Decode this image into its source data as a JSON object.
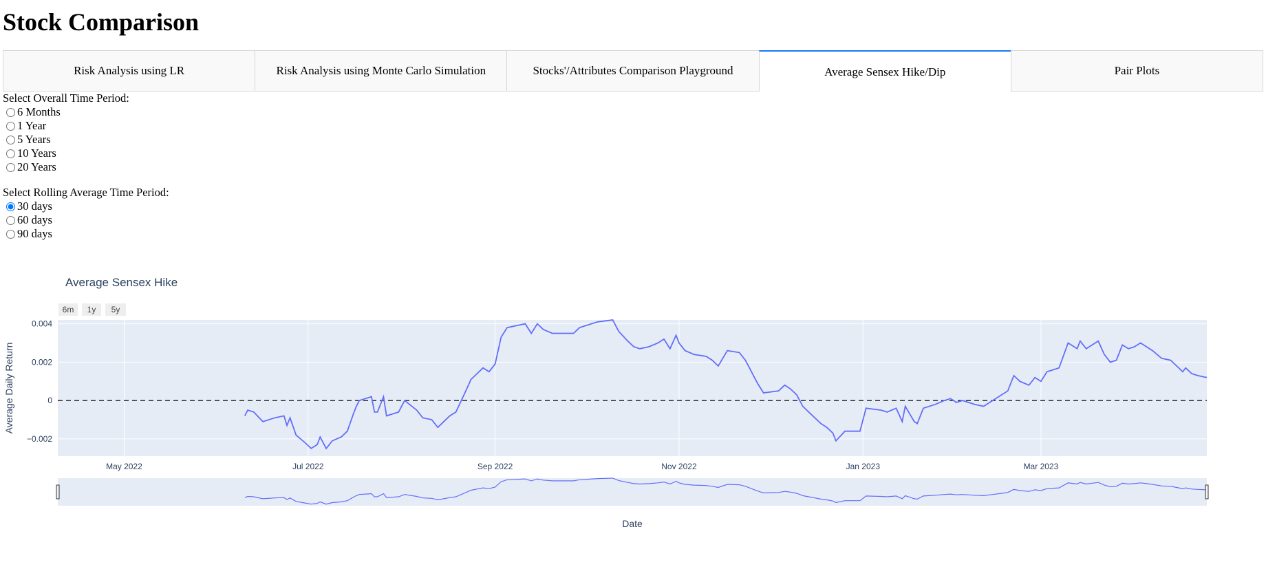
{
  "page": {
    "title": "Stock Comparison"
  },
  "tabs": [
    {
      "label": "Risk Analysis using LR",
      "selected": false
    },
    {
      "label": "Risk Analysis using Monte Carlo Simulation",
      "selected": false
    },
    {
      "label": "Stocks'/Attributes Comparison Playground",
      "selected": false
    },
    {
      "label": "Average Sensex Hike/Dip",
      "selected": true
    },
    {
      "label": "Pair Plots",
      "selected": false
    }
  ],
  "time_period": {
    "label": "Select Overall Time Period:",
    "options": [
      "6 Months",
      "1 Year",
      "5 Years",
      "10 Years",
      "20 Years"
    ],
    "selected": null
  },
  "rolling": {
    "label": "Select Rolling Average Time Period:",
    "options": [
      "30 days",
      "60 days",
      "90 days"
    ],
    "selected": "30 days"
  },
  "colors": {
    "line": "#636efa",
    "plot_bg": "#e5ecf6",
    "tab_accent": "#1975FA"
  },
  "range_selector": [
    "6m",
    "1y",
    "5y"
  ],
  "chart_data": {
    "type": "line",
    "title": "Average Sensex Hike",
    "xlabel": "Date",
    "ylabel": "Average Daily Return",
    "xlim": [
      "2022-04-09",
      "2023-04-25"
    ],
    "ylim": [
      -0.0029,
      0.0042
    ],
    "xticks": [
      {
        "date": "2022-05-01",
        "label": "May 2022"
      },
      {
        "date": "2022-07-01",
        "label": "Jul 2022"
      },
      {
        "date": "2022-09-01",
        "label": "Sep 2022"
      },
      {
        "date": "2022-11-01",
        "label": "Nov 2022"
      },
      {
        "date": "2023-01-01",
        "label": "Jan 2023"
      },
      {
        "date": "2023-03-01",
        "label": "Mar 2023"
      }
    ],
    "yticks": [
      {
        "value": 0.004,
        "label": "0.004"
      },
      {
        "value": 0.002,
        "label": "0.002"
      },
      {
        "value": 0,
        "label": "0"
      },
      {
        "value": -0.002,
        "label": "−0.002"
      }
    ],
    "reference_line": {
      "y": 0,
      "style": "dashed"
    },
    "grid": true,
    "rangeslider": true,
    "series": [
      {
        "values": [
          [
            "2022-06-10",
            -0.0008
          ],
          [
            "2022-06-11",
            -0.0005
          ],
          [
            "2022-06-13",
            -0.0006
          ],
          [
            "2022-06-16",
            -0.0011
          ],
          [
            "2022-06-20",
            -0.0009
          ],
          [
            "2022-06-23",
            -0.0008
          ],
          [
            "2022-06-24",
            -0.0013
          ],
          [
            "2022-06-25",
            -0.0009
          ],
          [
            "2022-06-27",
            -0.0018
          ],
          [
            "2022-06-30",
            -0.0022
          ],
          [
            "2022-07-02",
            -0.0025
          ],
          [
            "2022-07-04",
            -0.0023
          ],
          [
            "2022-07-05",
            -0.0019
          ],
          [
            "2022-07-07",
            -0.0025
          ],
          [
            "2022-07-09",
            -0.0021
          ],
          [
            "2022-07-12",
            -0.0019
          ],
          [
            "2022-07-14",
            -0.0016
          ],
          [
            "2022-07-16",
            -0.0007
          ],
          [
            "2022-07-17",
            -0.0003
          ],
          [
            "2022-07-18",
            0.0
          ],
          [
            "2022-07-20",
            0.0001
          ],
          [
            "2022-07-22",
            0.0002
          ],
          [
            "2022-07-23",
            -0.0006
          ],
          [
            "2022-07-24",
            -0.0006
          ],
          [
            "2022-07-26",
            0.0002
          ],
          [
            "2022-07-27",
            -0.0008
          ],
          [
            "2022-07-31",
            -0.0006
          ],
          [
            "2022-08-02",
            0.0
          ],
          [
            "2022-08-06",
            -0.0005
          ],
          [
            "2022-08-08",
            -0.0009
          ],
          [
            "2022-08-11",
            -0.001
          ],
          [
            "2022-08-13",
            -0.0014
          ],
          [
            "2022-08-15",
            -0.0011
          ],
          [
            "2022-08-17",
            -0.0008
          ],
          [
            "2022-08-19",
            -0.0006
          ],
          [
            "2022-08-22",
            0.0004
          ],
          [
            "2022-08-24",
            0.0011
          ],
          [
            "2022-08-26",
            0.0014
          ],
          [
            "2022-08-28",
            0.0017
          ],
          [
            "2022-08-30",
            0.0015
          ],
          [
            "2022-09-01",
            0.0019
          ],
          [
            "2022-09-03",
            0.0033
          ],
          [
            "2022-09-05",
            0.0038
          ],
          [
            "2022-09-08",
            0.0039
          ],
          [
            "2022-09-11",
            0.004
          ],
          [
            "2022-09-13",
            0.0035
          ],
          [
            "2022-09-15",
            0.004
          ],
          [
            "2022-09-17",
            0.0037
          ],
          [
            "2022-09-20",
            0.0035
          ],
          [
            "2022-09-27",
            0.0035
          ],
          [
            "2022-09-29",
            0.0038
          ],
          [
            "2022-10-05",
            0.0041
          ],
          [
            "2022-10-10",
            0.0042
          ],
          [
            "2022-10-12",
            0.0036
          ],
          [
            "2022-10-15",
            0.0031
          ],
          [
            "2022-10-17",
            0.0028
          ],
          [
            "2022-10-19",
            0.0027
          ],
          [
            "2022-10-22",
            0.0028
          ],
          [
            "2022-10-25",
            0.003
          ],
          [
            "2022-10-27",
            0.0032
          ],
          [
            "2022-10-29",
            0.0027
          ],
          [
            "2022-10-31",
            0.0034
          ],
          [
            "2022-11-01",
            0.003
          ],
          [
            "2022-11-03",
            0.0026
          ],
          [
            "2022-11-06",
            0.0024
          ],
          [
            "2022-11-10",
            0.0023
          ],
          [
            "2022-11-12",
            0.0021
          ],
          [
            "2022-11-14",
            0.0018
          ],
          [
            "2022-11-17",
            0.0026
          ],
          [
            "2022-11-21",
            0.0025
          ],
          [
            "2022-11-23",
            0.0021
          ],
          [
            "2022-11-27",
            0.0009
          ],
          [
            "2022-11-29",
            0.0004
          ],
          [
            "2022-12-04",
            0.0005
          ],
          [
            "2022-12-06",
            0.0008
          ],
          [
            "2022-12-08",
            0.0006
          ],
          [
            "2022-12-10",
            0.0003
          ],
          [
            "2022-12-12",
            -0.0003
          ],
          [
            "2022-12-14",
            -0.0006
          ],
          [
            "2022-12-16",
            -0.0009
          ],
          [
            "2022-12-18",
            -0.0012
          ],
          [
            "2022-12-20",
            -0.0014
          ],
          [
            "2022-12-22",
            -0.0017
          ],
          [
            "2022-12-23",
            -0.0021
          ],
          [
            "2022-12-26",
            -0.0016
          ],
          [
            "2022-12-31",
            -0.0016
          ],
          [
            "2023-01-02",
            -0.0004
          ],
          [
            "2023-01-07",
            -0.0005
          ],
          [
            "2023-01-09",
            -0.0006
          ],
          [
            "2023-01-12",
            -0.0004
          ],
          [
            "2023-01-14",
            -0.0011
          ],
          [
            "2023-01-15",
            -0.0003
          ],
          [
            "2023-01-18",
            -0.0011
          ],
          [
            "2023-01-19",
            -0.0012
          ],
          [
            "2023-01-21",
            -0.0004
          ],
          [
            "2023-01-25",
            -0.0002
          ],
          [
            "2023-01-28",
            0.0
          ],
          [
            "2023-01-30",
            0.0001
          ],
          [
            "2023-02-01",
            -0.0001
          ],
          [
            "2023-02-03",
            0.0
          ],
          [
            "2023-02-07",
            -0.0002
          ],
          [
            "2023-02-10",
            -0.0003
          ],
          [
            "2023-02-13",
            0.0
          ],
          [
            "2023-02-16",
            0.0003
          ],
          [
            "2023-02-18",
            0.0005
          ],
          [
            "2023-02-20",
            0.0013
          ],
          [
            "2023-02-22",
            0.001
          ],
          [
            "2023-02-25",
            0.0008
          ],
          [
            "2023-02-27",
            0.0012
          ],
          [
            "2023-03-01",
            0.001
          ],
          [
            "2023-03-03",
            0.0015
          ],
          [
            "2023-03-05",
            0.0016
          ],
          [
            "2023-03-07",
            0.0017
          ],
          [
            "2023-03-10",
            0.003
          ],
          [
            "2023-03-13",
            0.0027
          ],
          [
            "2023-03-14",
            0.0031
          ],
          [
            "2023-03-16",
            0.0027
          ],
          [
            "2023-03-18",
            0.0029
          ],
          [
            "2023-03-20",
            0.0031
          ],
          [
            "2023-03-22",
            0.0024
          ],
          [
            "2023-03-24",
            0.002
          ],
          [
            "2023-03-26",
            0.0021
          ],
          [
            "2023-03-28",
            0.0029
          ],
          [
            "2023-03-30",
            0.0027
          ],
          [
            "2023-04-01",
            0.0028
          ],
          [
            "2023-04-03",
            0.003
          ],
          [
            "2023-04-05",
            0.0028
          ],
          [
            "2023-04-07",
            0.0026
          ],
          [
            "2023-04-10",
            0.0022
          ],
          [
            "2023-04-13",
            0.0021
          ],
          [
            "2023-04-15",
            0.0018
          ],
          [
            "2023-04-17",
            0.0015
          ],
          [
            "2023-04-18",
            0.0017
          ],
          [
            "2023-04-20",
            0.0014
          ],
          [
            "2023-04-22",
            0.0013
          ],
          [
            "2023-04-25",
            0.0012
          ]
        ]
      }
    ]
  }
}
